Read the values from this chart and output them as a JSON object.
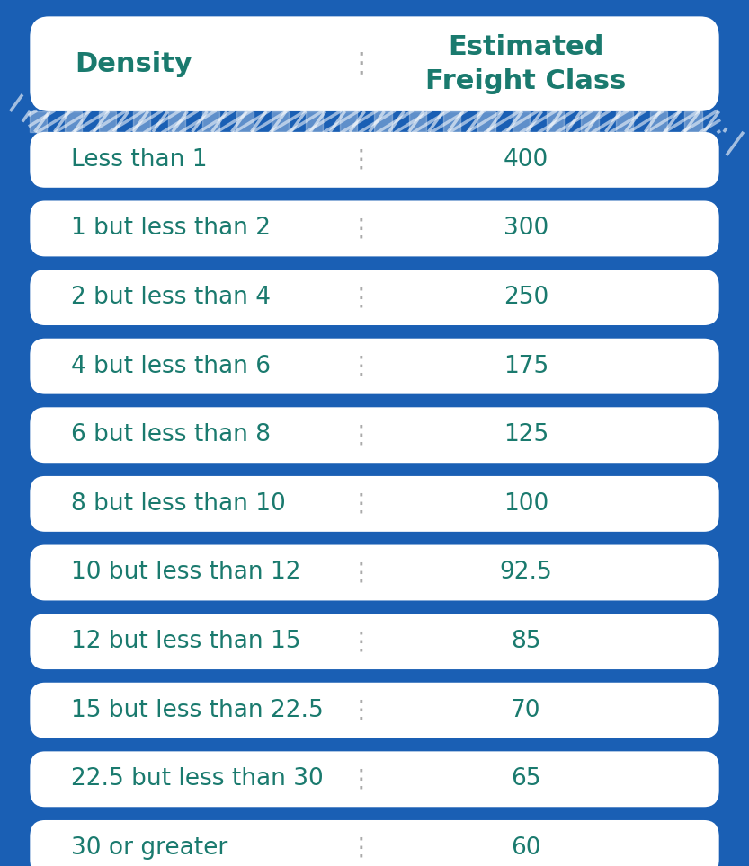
{
  "bg_color": "#1a5fb4",
  "row_bg_color": "#ffffff",
  "header_bg_color": "#ffffff",
  "text_color_teal": "#1a7a6e",
  "text_color_blue": "#1a5fb4",
  "divider_color": "#aaaaaa",
  "title_density": "Density",
  "title_freight": "Estimated\nFreight Class",
  "rows": [
    {
      "density": "Less than 1",
      "freight": "400"
    },
    {
      "density": "1 but less than 2",
      "freight": "300"
    },
    {
      "density": "2 but less than 4",
      "freight": "250"
    },
    {
      "density": "4 but less than 6",
      "freight": "175"
    },
    {
      "density": "6 but less than 8",
      "freight": "125"
    },
    {
      "density": "8 but less than 10",
      "freight": "100"
    },
    {
      "density": "10 but less than 12",
      "freight": "92.5"
    },
    {
      "density": "12 but less than 15",
      "freight": "85"
    },
    {
      "density": "15 but less than 22.5",
      "freight": "70"
    },
    {
      "density": "22.5 but less than 30",
      "freight": "65"
    },
    {
      "density": "30 or greater",
      "freight": "60"
    }
  ],
  "font_size_header": 22,
  "font_size_row": 19,
  "stripe_color_dark": "#1a5fb4",
  "stripe_color_light": "#4a90d9"
}
